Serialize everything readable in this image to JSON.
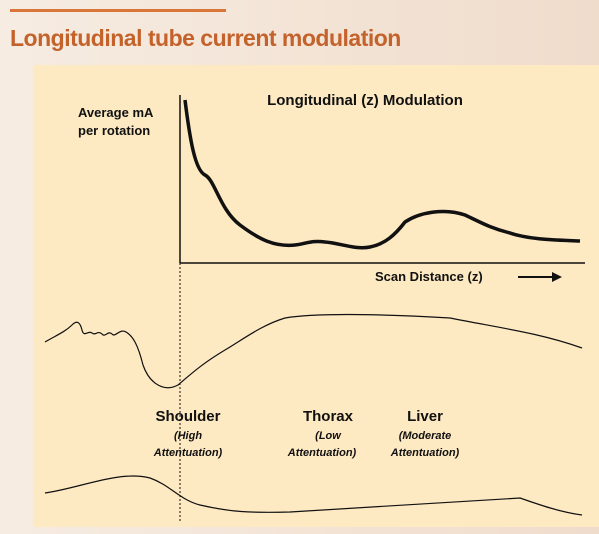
{
  "header": {
    "title": "Longitudinal tube current modulation"
  },
  "graph": {
    "title": "Longitudinal (z) Modulation",
    "y_label": [
      "Average mA",
      "per rotation"
    ],
    "x_label": "Scan Distance (z)"
  },
  "regions": [
    {
      "name": "Shoulder",
      "note": [
        "(High",
        "Attentuation)"
      ]
    },
    {
      "name": "Thorax",
      "note": [
        "(Low",
        "Attentuation)"
      ]
    },
    {
      "name": "Liver",
      "note": [
        "(Moderate",
        "Attentuation)"
      ]
    }
  ]
}
